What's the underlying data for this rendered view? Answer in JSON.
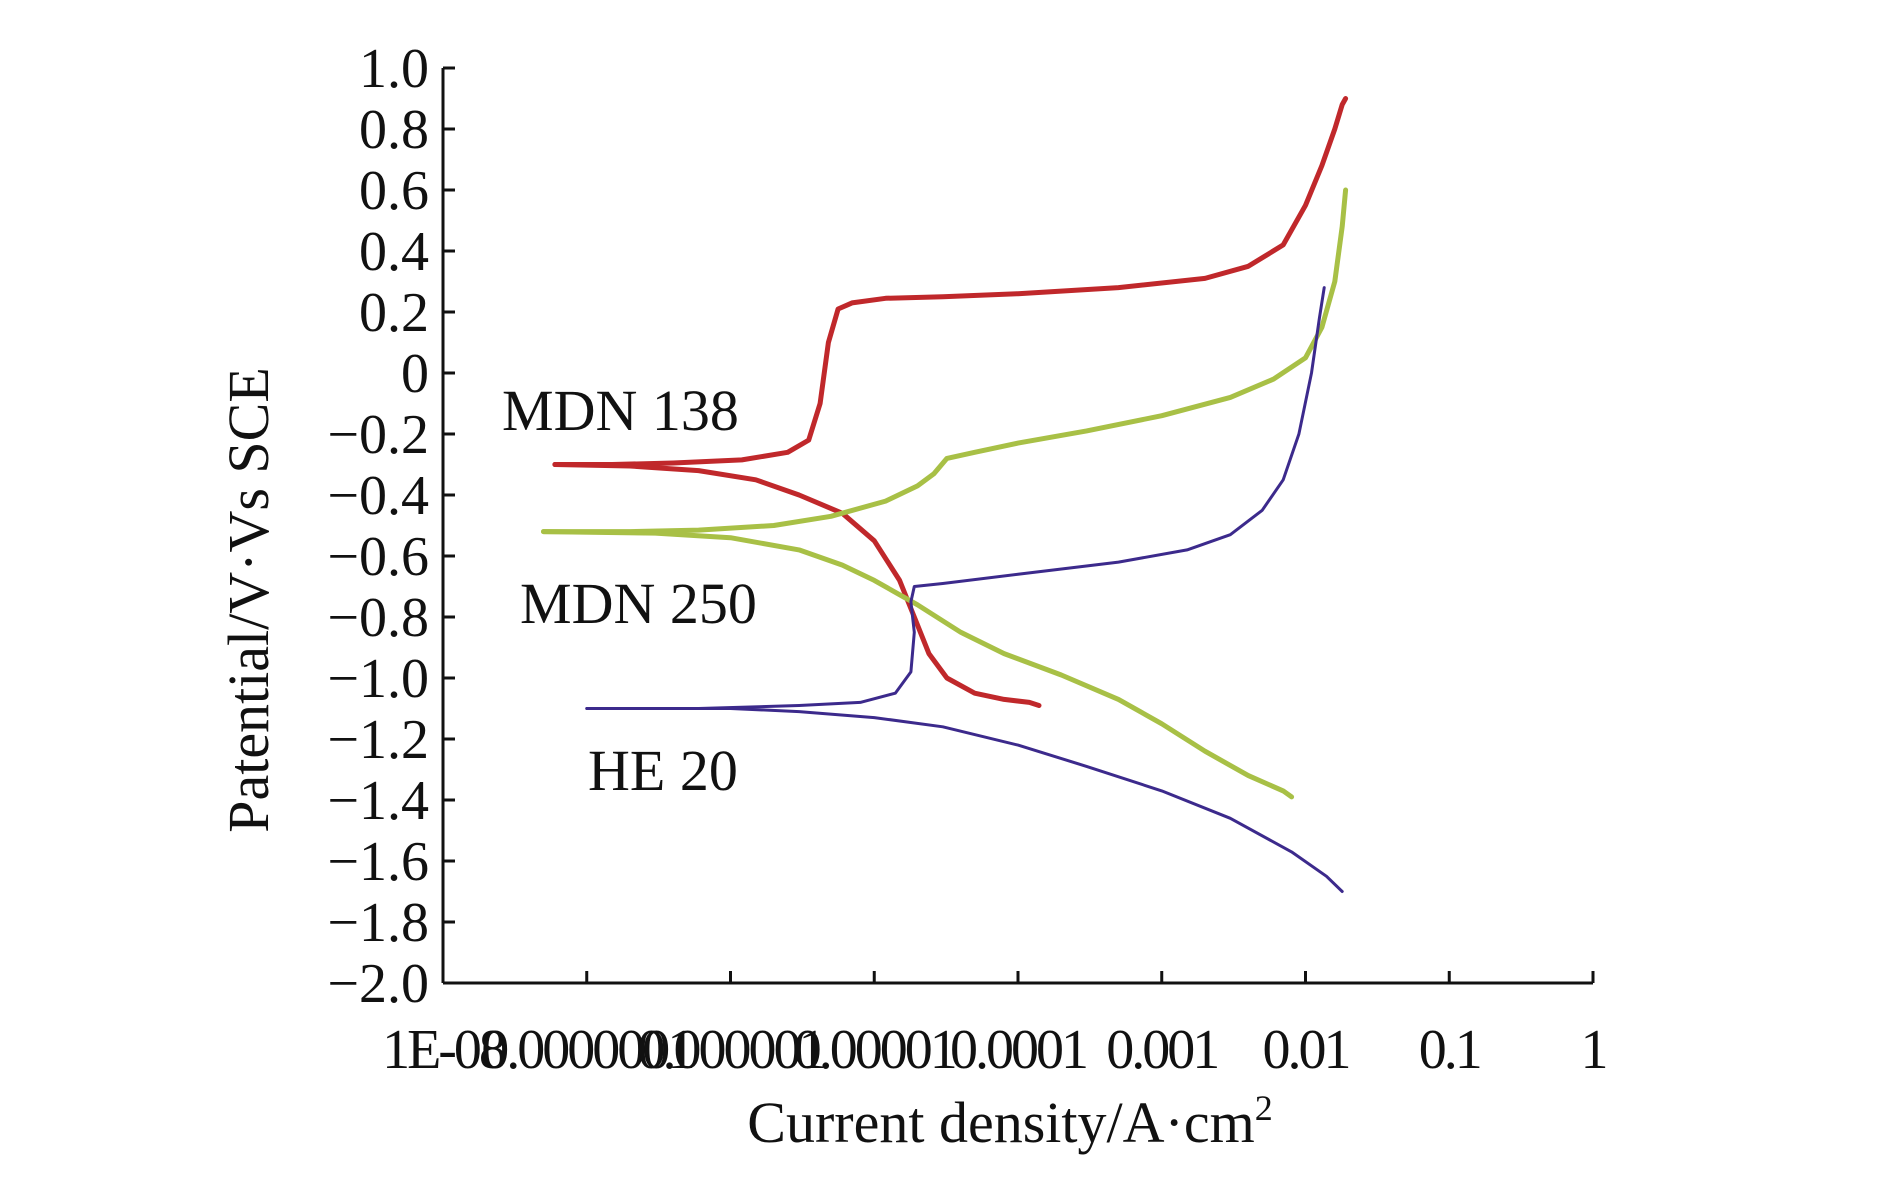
{
  "chart_data": {
    "type": "line",
    "title": "",
    "xlabel": "Current density/A·cm",
    "xlabel_superscript": "2",
    "ylabel": "Patential/V·Vs SCE",
    "xscale": "log",
    "xlim": [
      1e-08,
      1
    ],
    "ylim": [
      -2.0,
      1.0
    ],
    "x_ticks": [
      1e-08,
      1e-07,
      1e-06,
      1e-05,
      0.0001,
      0.001,
      0.01,
      0.1,
      1
    ],
    "x_tick_labels": [
      "1E-08",
      "0.0000001",
      "0.000001",
      "0.00001",
      "0.0001",
      "0.001",
      "0.01",
      "0.1",
      "1"
    ],
    "y_ticks": [
      1.0,
      0.8,
      0.6,
      0.4,
      0.2,
      0,
      -0.2,
      -0.4,
      -0.6,
      -0.8,
      -1.0,
      -1.2,
      -1.4,
      -1.6,
      -1.8,
      -2.0
    ],
    "y_tick_labels": [
      "1.0",
      "0.8",
      "0.6",
      "0.4",
      "0.2",
      "0",
      "−0.2",
      "−0.4",
      "−0.6",
      "−0.8",
      "−1.0",
      "−1.2",
      "−1.4",
      "−1.6",
      "−1.8",
      "−2.0"
    ],
    "grid": false,
    "series": [
      {
        "name": "MDN 138",
        "color": "#c0282b",
        "label_text": "MDN 138",
        "anodic": [
          [
            6e-08,
            -0.3
          ],
          [
            1.5e-07,
            -0.3
          ],
          [
            4e-07,
            -0.295
          ],
          [
            1.2e-06,
            -0.285
          ],
          [
            2.5e-06,
            -0.26
          ],
          [
            3.5e-06,
            -0.22
          ],
          [
            4.2e-06,
            -0.1
          ],
          [
            4.8e-06,
            0.1
          ],
          [
            5.6e-06,
            0.21
          ],
          [
            7e-06,
            0.23
          ],
          [
            1.2e-05,
            0.245
          ],
          [
            3e-05,
            0.25
          ],
          [
            0.0001,
            0.26
          ],
          [
            0.0005,
            0.28
          ],
          [
            0.002,
            0.31
          ],
          [
            0.004,
            0.35
          ],
          [
            0.007,
            0.42
          ],
          [
            0.01,
            0.55
          ],
          [
            0.013,
            0.68
          ],
          [
            0.016,
            0.8
          ],
          [
            0.018,
            0.88
          ],
          [
            0.019,
            0.9
          ]
        ],
        "cathodic": [
          [
            6e-08,
            -0.3
          ],
          [
            2e-07,
            -0.305
          ],
          [
            6e-07,
            -0.32
          ],
          [
            1.5e-06,
            -0.35
          ],
          [
            3e-06,
            -0.4
          ],
          [
            6e-06,
            -0.46
          ],
          [
            1e-05,
            -0.55
          ],
          [
            1.5e-05,
            -0.68
          ],
          [
            1.9e-05,
            -0.8
          ],
          [
            2.4e-05,
            -0.92
          ],
          [
            3.2e-05,
            -1.0
          ],
          [
            5e-05,
            -1.05
          ],
          [
            8e-05,
            -1.07
          ],
          [
            0.00012,
            -1.08
          ],
          [
            0.00014,
            -1.09
          ]
        ]
      },
      {
        "name": "MDN 250",
        "color": "#a8c046",
        "label_text": "MDN 250",
        "anodic": [
          [
            5e-08,
            -0.52
          ],
          [
            2e-07,
            -0.52
          ],
          [
            6e-07,
            -0.515
          ],
          [
            2e-06,
            -0.5
          ],
          [
            5e-06,
            -0.47
          ],
          [
            1.2e-05,
            -0.42
          ],
          [
            2e-05,
            -0.37
          ],
          [
            2.6e-05,
            -0.33
          ],
          [
            3.2e-05,
            -0.28
          ],
          [
            5e-05,
            -0.26
          ],
          [
            0.0001,
            -0.23
          ],
          [
            0.0003,
            -0.19
          ],
          [
            0.001,
            -0.14
          ],
          [
            0.003,
            -0.08
          ],
          [
            0.006,
            -0.02
          ],
          [
            0.01,
            0.05
          ],
          [
            0.013,
            0.15
          ],
          [
            0.016,
            0.3
          ],
          [
            0.018,
            0.48
          ],
          [
            0.019,
            0.6
          ]
        ],
        "cathodic": [
          [
            5e-08,
            -0.52
          ],
          [
            3e-07,
            -0.525
          ],
          [
            1e-06,
            -0.54
          ],
          [
            3e-06,
            -0.58
          ],
          [
            6e-06,
            -0.63
          ],
          [
            1e-05,
            -0.68
          ],
          [
            2e-05,
            -0.76
          ],
          [
            4e-05,
            -0.85
          ],
          [
            8e-05,
            -0.92
          ],
          [
            0.0002,
            -0.99
          ],
          [
            0.0005,
            -1.07
          ],
          [
            0.001,
            -1.15
          ],
          [
            0.002,
            -1.24
          ],
          [
            0.004,
            -1.32
          ],
          [
            0.007,
            -1.37
          ],
          [
            0.008,
            -1.39
          ]
        ]
      },
      {
        "name": "HE 20",
        "color": "#3c2a8c",
        "label_text": "HE 20",
        "anodic": [
          [
            1e-07,
            -1.1
          ],
          [
            6e-07,
            -1.1
          ],
          [
            3e-06,
            -1.09
          ],
          [
            8e-06,
            -1.08
          ],
          [
            1.4e-05,
            -1.05
          ],
          [
            1.8e-05,
            -0.98
          ],
          [
            1.9e-05,
            -0.85
          ],
          [
            1.8e-05,
            -0.75
          ],
          [
            1.9e-05,
            -0.7
          ],
          [
            3e-05,
            -0.69
          ],
          [
            0.0001,
            -0.66
          ],
          [
            0.0005,
            -0.62
          ],
          [
            0.0015,
            -0.58
          ],
          [
            0.003,
            -0.53
          ],
          [
            0.005,
            -0.45
          ],
          [
            0.007,
            -0.35
          ],
          [
            0.009,
            -0.2
          ],
          [
            0.011,
            0.0
          ],
          [
            0.0125,
            0.18
          ],
          [
            0.0135,
            0.28
          ]
        ],
        "cathodic": [
          [
            1e-07,
            -1.1
          ],
          [
            1e-06,
            -1.1
          ],
          [
            3e-06,
            -1.11
          ],
          [
            1e-05,
            -1.13
          ],
          [
            3e-05,
            -1.16
          ],
          [
            0.0001,
            -1.22
          ],
          [
            0.0003,
            -1.29
          ],
          [
            0.001,
            -1.37
          ],
          [
            0.003,
            -1.46
          ],
          [
            0.008,
            -1.57
          ],
          [
            0.014,
            -1.65
          ],
          [
            0.018,
            -1.7
          ]
        ]
      }
    ]
  }
}
